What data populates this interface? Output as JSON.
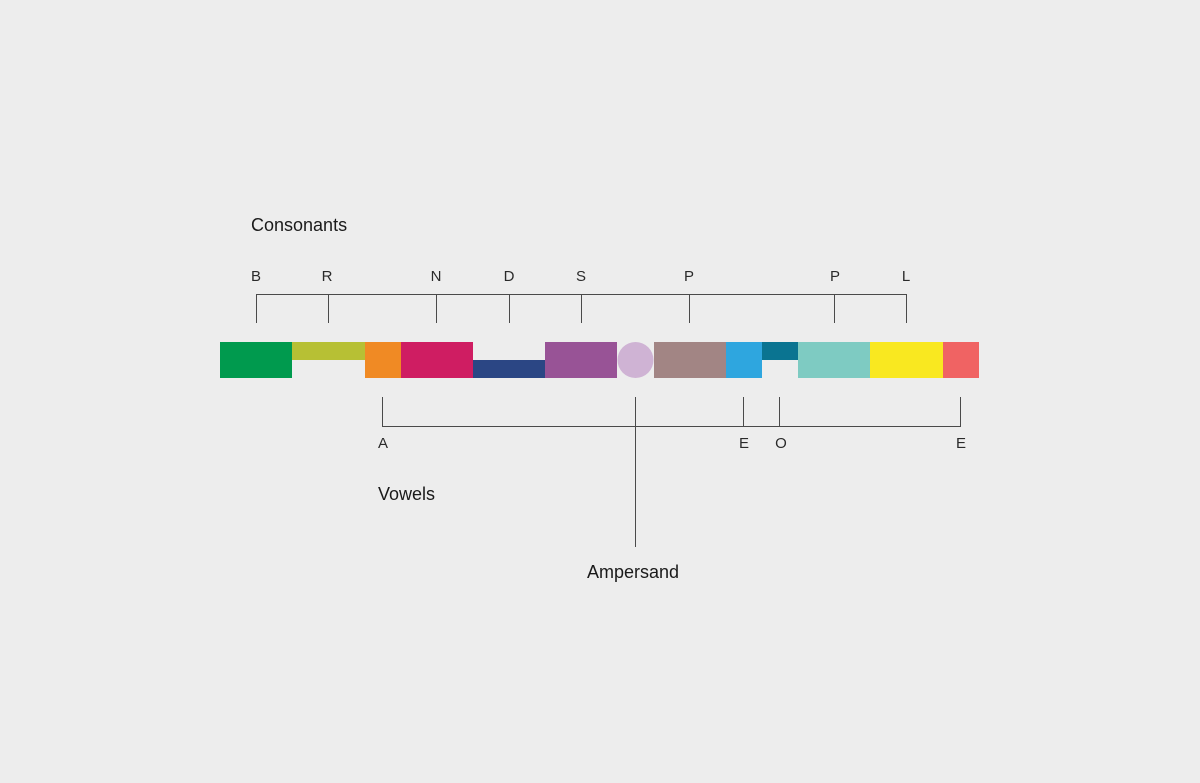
{
  "diagram": {
    "background_color": "#ededed",
    "consonants": {
      "heading": "Consonants",
      "letters": [
        "B",
        "R",
        "N",
        "D",
        "S",
        "P",
        "P",
        "L"
      ]
    },
    "vowels": {
      "heading": "Vowels",
      "letters": [
        "A",
        "E",
        "O",
        "E"
      ]
    },
    "ampersand": {
      "heading": "Ampersand",
      "color": "#cfb3d4"
    },
    "blocks": [
      {
        "color": "#009a4e"
      },
      {
        "color": "#b7c034"
      },
      {
        "color": "#f08a24"
      },
      {
        "color": "#cf1d62"
      },
      {
        "color": "#2b4684"
      },
      {
        "color": "#985396"
      },
      {
        "color": "#cfb3d4"
      },
      {
        "color": "#a28584"
      },
      {
        "color": "#2ea6df"
      },
      {
        "color": "#0a7491"
      },
      {
        "color": "#7ecbc2"
      },
      {
        "color": "#f9e820"
      },
      {
        "color": "#f06363"
      }
    ]
  }
}
